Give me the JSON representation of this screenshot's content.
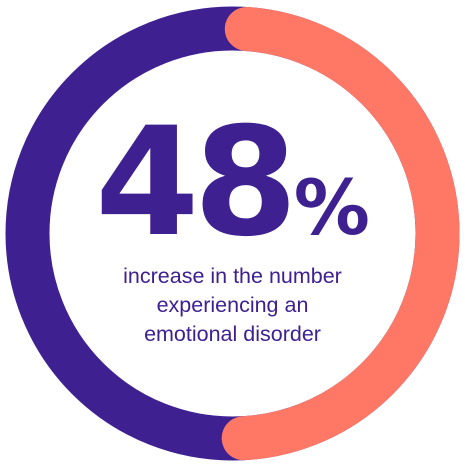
{
  "chart_data": {
    "type": "pie",
    "style": "donut",
    "value_percent": 48,
    "slices": [
      {
        "value": 48,
        "color": "#ff7866"
      },
      {
        "value": 52,
        "color": "#3f2091"
      }
    ],
    "center_value": "48",
    "center_unit": "%",
    "caption_lines": [
      "increase in the number",
      "experiencing an",
      "emotional disorder"
    ]
  },
  "colors": {
    "accent": "#ff7866",
    "primary": "#3f2091",
    "background": "#ffffff"
  }
}
